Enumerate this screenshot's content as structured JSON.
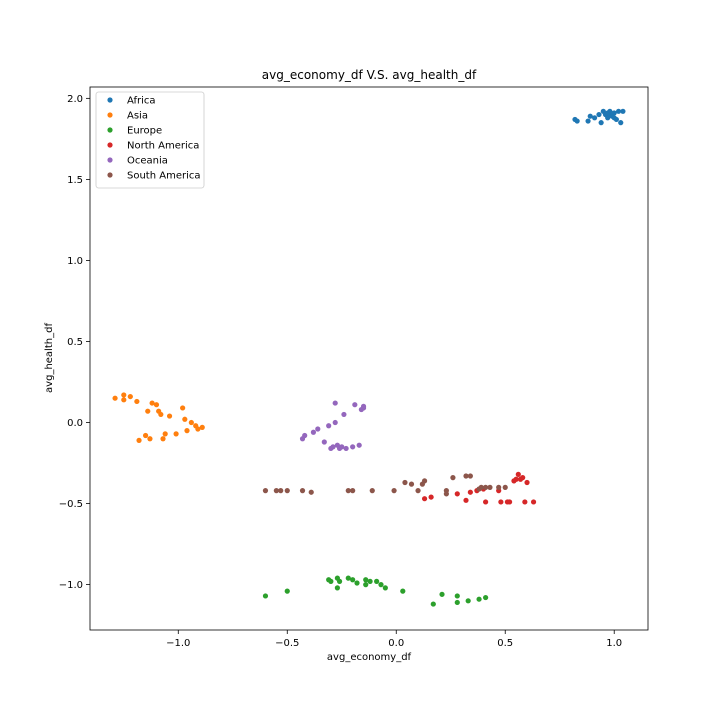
{
  "chart_data": {
    "type": "scatter",
    "title": "avg_economy_df V.S. avg_health_df",
    "xlabel": "avg_economy_df",
    "ylabel": "avg_health_df",
    "xlim": [
      -1.405,
      1.155
    ],
    "ylim": [
      -1.28,
      2.07
    ],
    "xticks": [
      -1.0,
      -0.5,
      0.0,
      0.5,
      1.0
    ],
    "xtick_labels": [
      "−1.0",
      "−0.5",
      "0.0",
      "0.5",
      "1.0"
    ],
    "yticks": [
      -1.0,
      -0.5,
      0.0,
      0.5,
      1.0,
      1.5,
      2.0
    ],
    "ytick_labels": [
      "−1.0",
      "−0.5",
      "0.0",
      "0.5",
      "1.0",
      "1.5",
      "2.0"
    ],
    "grid": false,
    "legend_position": "top-left",
    "series": [
      {
        "name": "Africa",
        "color": "#1f77b4",
        "points": [
          [
            0.82,
            1.87
          ],
          [
            0.83,
            1.86
          ],
          [
            0.88,
            1.86
          ],
          [
            0.89,
            1.89
          ],
          [
            0.91,
            1.88
          ],
          [
            0.93,
            1.9
          ],
          [
            0.94,
            1.85
          ],
          [
            0.95,
            1.92
          ],
          [
            0.96,
            1.9
          ],
          [
            0.97,
            1.88
          ],
          [
            0.98,
            1.92
          ],
          [
            0.98,
            1.9
          ],
          [
            0.99,
            1.89
          ],
          [
            1.0,
            1.91
          ],
          [
            1.0,
            1.88
          ],
          [
            1.01,
            1.87
          ],
          [
            1.02,
            1.92
          ],
          [
            1.03,
            1.85
          ],
          [
            1.04,
            1.92
          ],
          [
            0.97,
            1.91
          ]
        ]
      },
      {
        "name": "Asia",
        "color": "#ff7f0e",
        "points": [
          [
            -1.29,
            0.15
          ],
          [
            -1.25,
            0.17
          ],
          [
            -1.25,
            0.14
          ],
          [
            -1.22,
            0.16
          ],
          [
            -1.19,
            0.13
          ],
          [
            -1.18,
            -0.11
          ],
          [
            -1.15,
            -0.08
          ],
          [
            -1.14,
            0.07
          ],
          [
            -1.13,
            -0.1
          ],
          [
            -1.12,
            0.12
          ],
          [
            -1.1,
            0.11
          ],
          [
            -1.09,
            0.07
          ],
          [
            -1.08,
            0.05
          ],
          [
            -1.07,
            -0.1
          ],
          [
            -1.06,
            -0.07
          ],
          [
            -1.04,
            0.04
          ],
          [
            -1.01,
            -0.07
          ],
          [
            -0.98,
            0.09
          ],
          [
            -0.97,
            0.02
          ],
          [
            -0.96,
            -0.05
          ],
          [
            -0.94,
            0.0
          ],
          [
            -0.92,
            -0.02
          ],
          [
            -0.91,
            -0.04
          ],
          [
            -0.89,
            -0.03
          ]
        ]
      },
      {
        "name": "Europe",
        "color": "#2ca02c",
        "points": [
          [
            -0.6,
            -1.07
          ],
          [
            -0.5,
            -1.04
          ],
          [
            -0.31,
            -0.97
          ],
          [
            -0.3,
            -0.98
          ],
          [
            -0.27,
            -0.96
          ],
          [
            -0.27,
            -1.02
          ],
          [
            -0.26,
            -0.98
          ],
          [
            -0.22,
            -0.96
          ],
          [
            -0.2,
            -0.97
          ],
          [
            -0.18,
            -0.99
          ],
          [
            -0.14,
            -0.97
          ],
          [
            -0.14,
            -1.0
          ],
          [
            -0.12,
            -0.98
          ],
          [
            -0.09,
            -0.98
          ],
          [
            -0.07,
            -1.0
          ],
          [
            -0.05,
            -1.02
          ],
          [
            0.03,
            -1.04
          ],
          [
            0.17,
            -1.12
          ],
          [
            0.21,
            -1.06
          ],
          [
            0.28,
            -1.07
          ],
          [
            0.28,
            -1.11
          ],
          [
            0.33,
            -1.1
          ],
          [
            0.38,
            -1.09
          ],
          [
            0.41,
            -1.08
          ]
        ]
      },
      {
        "name": "North America",
        "color": "#d62728",
        "points": [
          [
            0.13,
            -0.47
          ],
          [
            0.16,
            -0.46
          ],
          [
            0.28,
            -0.44
          ],
          [
            0.32,
            -0.48
          ],
          [
            0.34,
            -0.43
          ],
          [
            0.37,
            -0.42
          ],
          [
            0.4,
            -0.41
          ],
          [
            0.41,
            -0.49
          ],
          [
            0.47,
            -0.42
          ],
          [
            0.48,
            -0.49
          ],
          [
            0.51,
            -0.49
          ],
          [
            0.52,
            -0.49
          ],
          [
            0.54,
            -0.36
          ],
          [
            0.55,
            -0.35
          ],
          [
            0.56,
            -0.32
          ],
          [
            0.57,
            -0.35
          ],
          [
            0.58,
            -0.34
          ],
          [
            0.59,
            -0.49
          ],
          [
            0.6,
            -0.37
          ],
          [
            0.63,
            -0.49
          ]
        ]
      },
      {
        "name": "Oceania",
        "color": "#9467bd",
        "points": [
          [
            -0.43,
            -0.1
          ],
          [
            -0.42,
            -0.08
          ],
          [
            -0.38,
            -0.06
          ],
          [
            -0.36,
            -0.04
          ],
          [
            -0.33,
            -0.12
          ],
          [
            -0.31,
            -0.02
          ],
          [
            -0.3,
            -0.16
          ],
          [
            -0.29,
            -0.15
          ],
          [
            -0.28,
            0.0
          ],
          [
            -0.28,
            0.12
          ],
          [
            -0.27,
            -0.14
          ],
          [
            -0.26,
            -0.16
          ],
          [
            -0.25,
            -0.15
          ],
          [
            -0.24,
            0.05
          ],
          [
            -0.23,
            -0.16
          ],
          [
            -0.2,
            -0.15
          ],
          [
            -0.19,
            0.11
          ],
          [
            -0.17,
            -0.14
          ],
          [
            -0.16,
            0.08
          ],
          [
            -0.15,
            0.1
          ],
          [
            -0.15,
            0.09
          ]
        ]
      },
      {
        "name": "South America",
        "color": "#8c564b",
        "points": [
          [
            -0.6,
            -0.42
          ],
          [
            -0.55,
            -0.42
          ],
          [
            -0.53,
            -0.42
          ],
          [
            -0.5,
            -0.42
          ],
          [
            -0.43,
            -0.42
          ],
          [
            -0.39,
            -0.43
          ],
          [
            -0.22,
            -0.42
          ],
          [
            -0.2,
            -0.42
          ],
          [
            -0.11,
            -0.42
          ],
          [
            -0.01,
            -0.42
          ],
          [
            0.04,
            -0.37
          ],
          [
            0.07,
            -0.38
          ],
          [
            0.1,
            -0.42
          ],
          [
            0.12,
            -0.38
          ],
          [
            0.13,
            -0.36
          ],
          [
            0.23,
            -0.42
          ],
          [
            0.23,
            -0.44
          ],
          [
            0.26,
            -0.34
          ],
          [
            0.32,
            -0.33
          ],
          [
            0.34,
            -0.33
          ],
          [
            0.38,
            -0.41
          ],
          [
            0.39,
            -0.4
          ],
          [
            0.41,
            -0.4
          ],
          [
            0.43,
            -0.4
          ],
          [
            0.47,
            -0.4
          ],
          [
            0.5,
            -0.4
          ]
        ]
      }
    ]
  }
}
